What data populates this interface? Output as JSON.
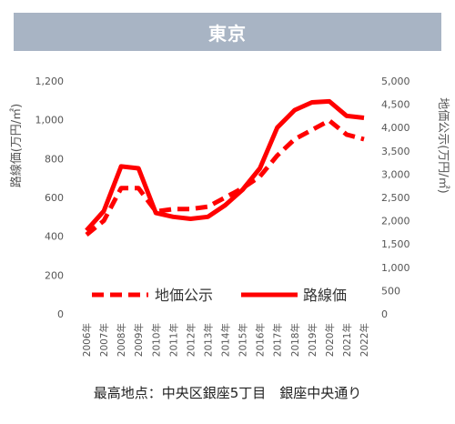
{
  "header": {
    "title": "東京"
  },
  "caption": "最高地点：中央区銀座5丁目　銀座中央通り",
  "colors": {
    "banner_bg": "#a8b4c4",
    "series": "#ff0000",
    "axis_text": "#555555"
  },
  "chart_data": {
    "type": "line",
    "categories": [
      "2006年",
      "2007年",
      "2008年",
      "2009年",
      "2010年",
      "2011年",
      "2012年",
      "2013年",
      "2014年",
      "2015年",
      "2016年",
      "2017年",
      "2018年",
      "2019年",
      "2020年",
      "2021年",
      "2022年"
    ],
    "ylabel_left": "路線価(万円/㎡)",
    "ylabel_right": "地価公示(万円/㎡)",
    "yticks_left": [
      "0",
      "200",
      "400",
      "600",
      "800",
      "1,000",
      "1,200"
    ],
    "yticks_right": [
      "0",
      "500",
      "1,000",
      "1,500",
      "2,000",
      "2,500",
      "3,000",
      "3,500",
      "4,000",
      "4,500",
      "5,000"
    ],
    "ylim_left": [
      0,
      1200
    ],
    "ylim_right": [
      0,
      5000
    ],
    "legend_position": "bottom-inside",
    "series": [
      {
        "name": "地価公示",
        "axis": "right",
        "style": "dashed",
        "values": [
          1700,
          2000,
          2700,
          2700,
          2200,
          2250,
          2250,
          2300,
          2500,
          2700,
          2950,
          3400,
          3750,
          3950,
          4150,
          3850,
          3750
        ]
      },
      {
        "name": "路線価",
        "axis": "left",
        "style": "solid",
        "values": [
          430,
          530,
          760,
          750,
          520,
          500,
          490,
          500,
          560,
          640,
          750,
          960,
          1050,
          1090,
          1095,
          1020,
          1010
        ]
      }
    ]
  }
}
